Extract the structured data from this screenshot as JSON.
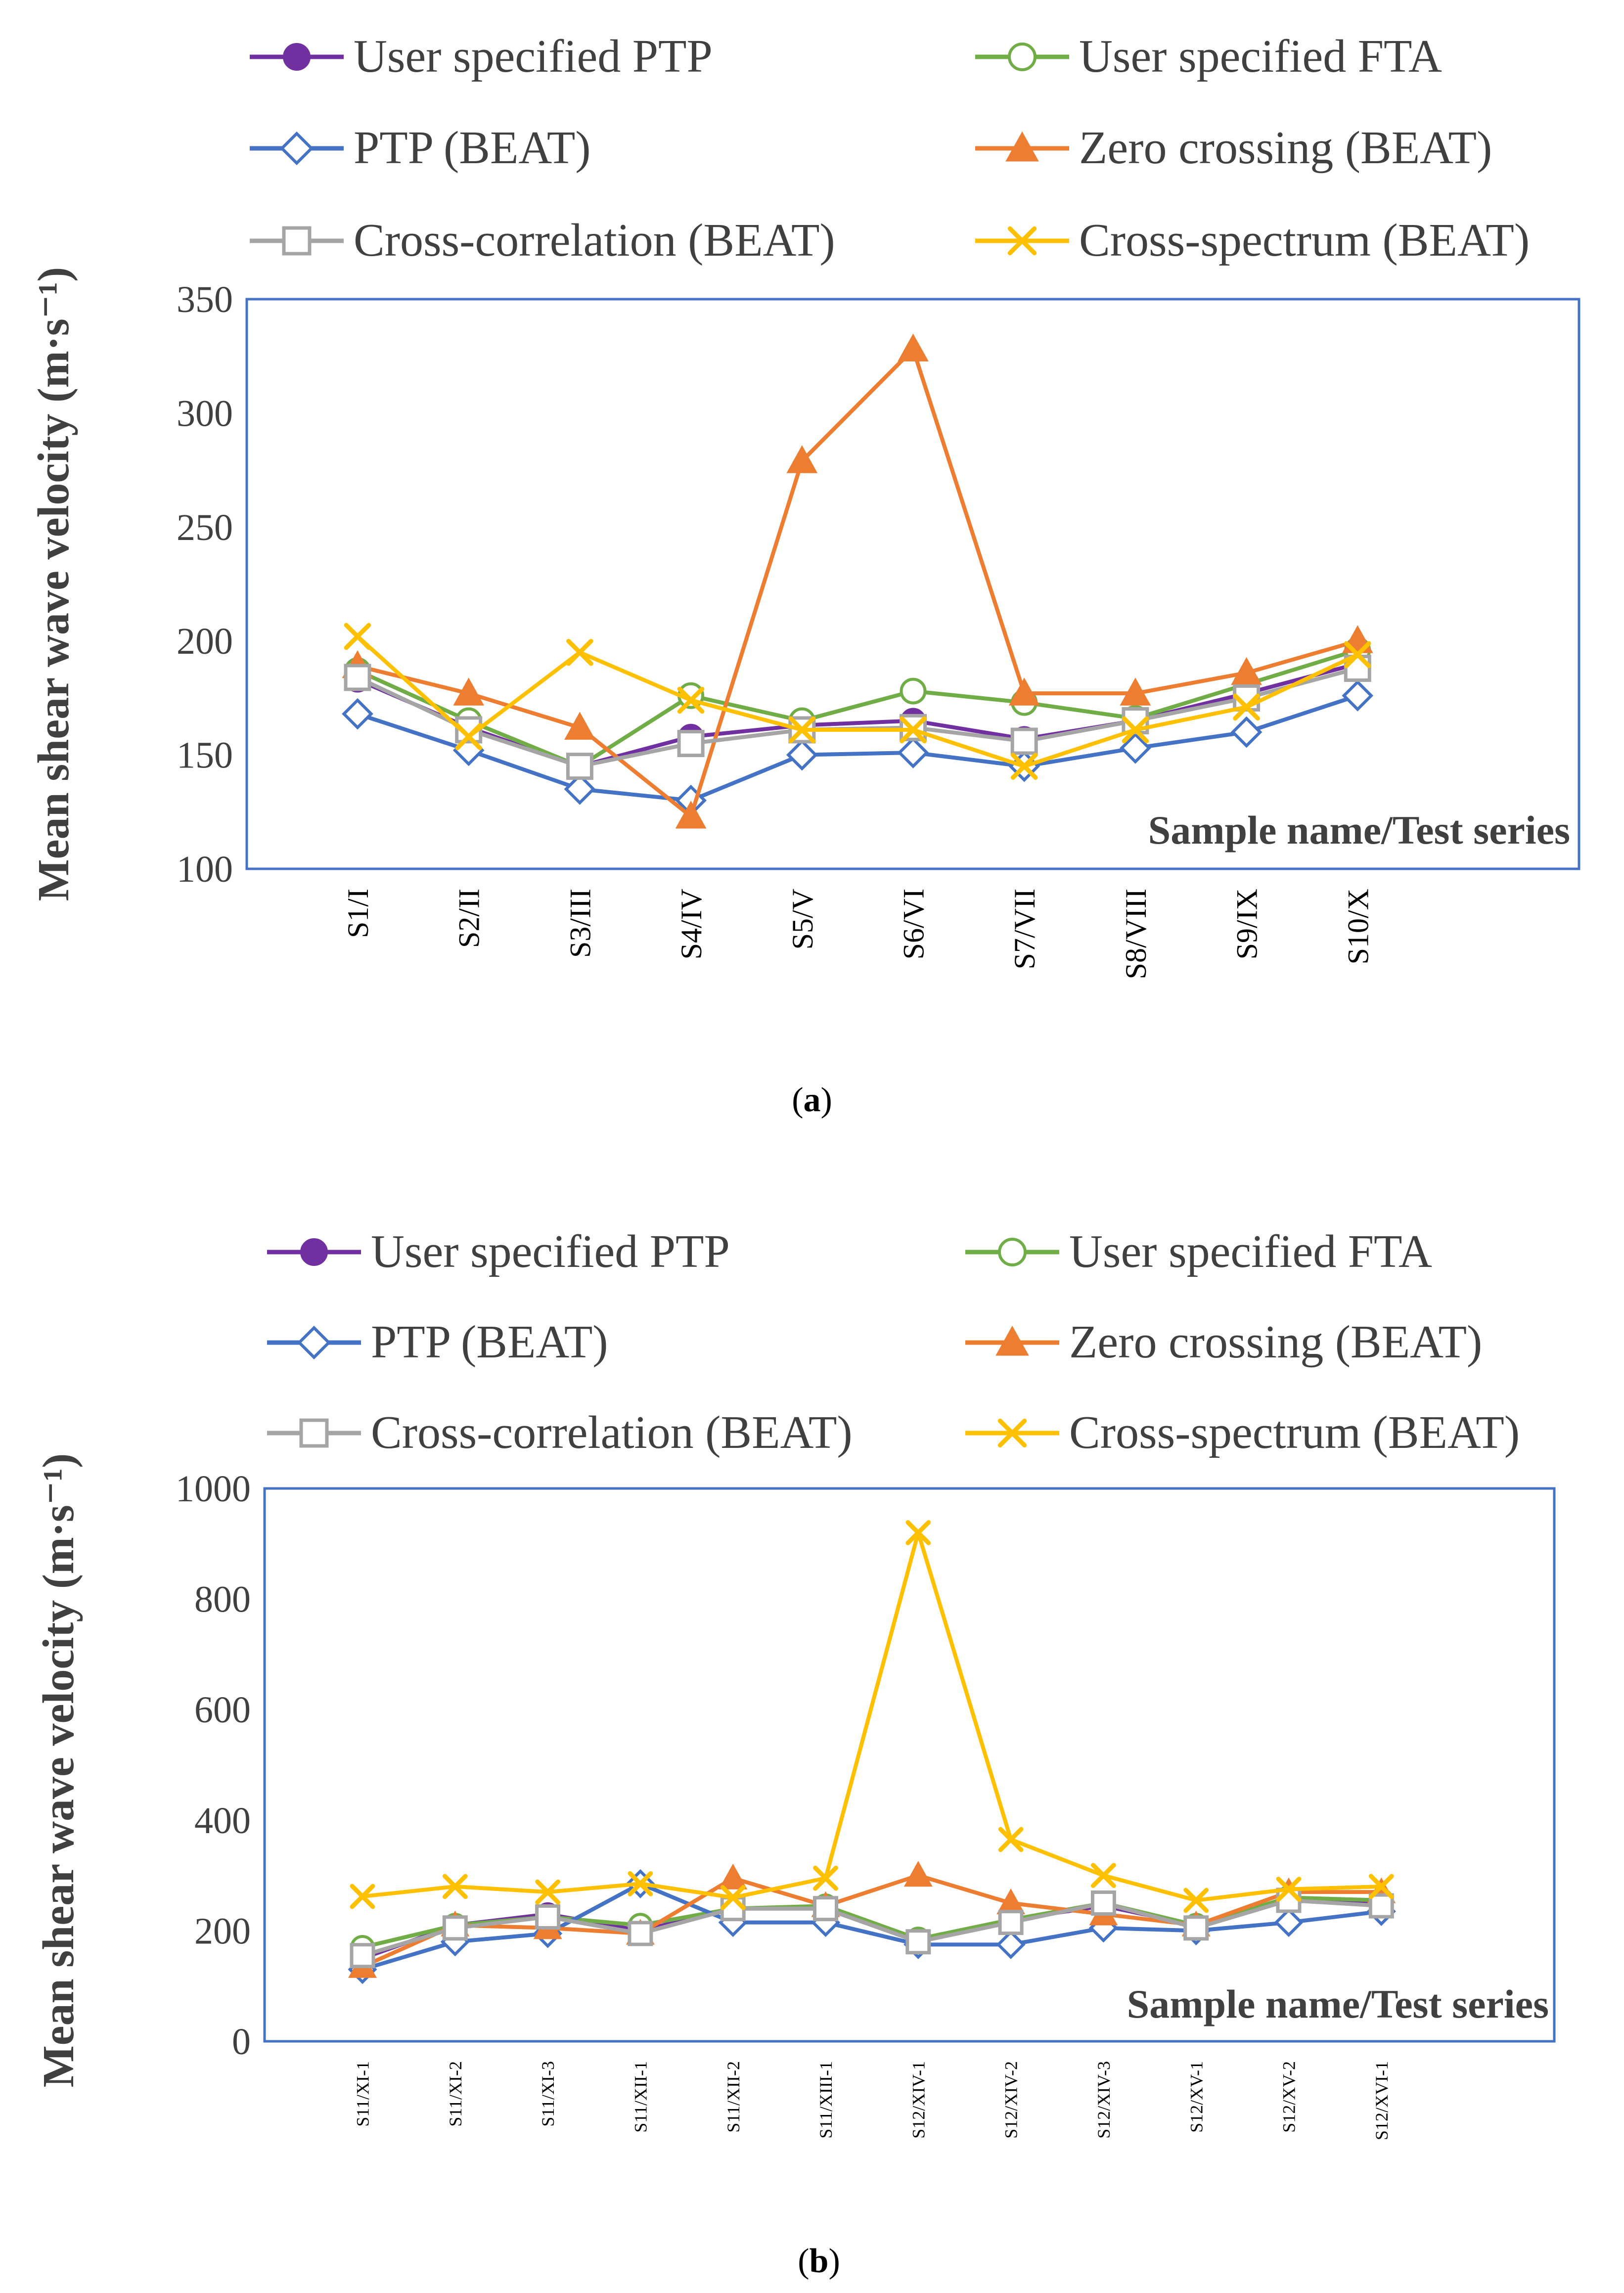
{
  "colors": {
    "user_ptp": "#7030A0",
    "user_fta": "#70AD47",
    "ptp_beat": "#4472C4",
    "zero_crossing": "#ED7D31",
    "cross_correlation": "#A5A5A5",
    "cross_spectrum": "#FFC000",
    "frame": "#4472C4"
  },
  "legend": [
    {
      "key": "user_ptp",
      "label": "User specified PTP",
      "marker": "filled-circle"
    },
    {
      "key": "user_fta",
      "label": "User specified FTA",
      "marker": "hollow-circle"
    },
    {
      "key": "ptp_beat",
      "label": "PTP (BEAT)",
      "marker": "hollow-diamond"
    },
    {
      "key": "zero_crossing",
      "label": "Zero crossing (BEAT)",
      "marker": "triangle"
    },
    {
      "key": "cross_correlation",
      "label": "Cross-correlation (BEAT)",
      "marker": "hollow-square"
    },
    {
      "key": "cross_spectrum",
      "label": "Cross-spectrum (BEAT)",
      "marker": "x"
    }
  ],
  "chart_data": [
    {
      "type": "line",
      "panel_label": "a",
      "ylabel": "Mean shear wave velocity (m·s⁻¹)",
      "xlabel": "Sample name/Test series",
      "ylim": [
        100,
        350
      ],
      "yticks": [
        100,
        150,
        200,
        250,
        300,
        350
      ],
      "categories": [
        "S1/I",
        "S2/II",
        "S3/III",
        "S4/IV",
        "S5/V",
        "S6/VI",
        "S7/VII",
        "S8/VIII",
        "S9/IX",
        "S10/X"
      ],
      "series": [
        {
          "key": "user_ptp",
          "name": "User specified PTP",
          "values": [
            183,
            162,
            145,
            158,
            163,
            165,
            157,
            165,
            177,
            190
          ]
        },
        {
          "key": "user_fta",
          "name": "User specified FTA",
          "values": [
            187,
            165,
            145,
            176,
            165,
            178,
            173,
            166,
            181,
            196
          ]
        },
        {
          "key": "ptp_beat",
          "name": "PTP (BEAT)",
          "values": [
            168,
            152,
            135,
            130,
            150,
            151,
            145,
            153,
            160,
            176
          ]
        },
        {
          "key": "zero_crossing",
          "name": "Zero crossing (BEAT)",
          "values": [
            189,
            177,
            162,
            123,
            279,
            328,
            177,
            177,
            186,
            200
          ]
        },
        {
          "key": "cross_correlation",
          "name": "Cross-correlation (BEAT)",
          "values": [
            184,
            161,
            145,
            155,
            161,
            162,
            156,
            165,
            175,
            188
          ]
        },
        {
          "key": "cross_spectrum",
          "name": "Cross-spectrum (BEAT)",
          "values": [
            202,
            158,
            195,
            174,
            161,
            161,
            145,
            161,
            171,
            194
          ]
        }
      ]
    },
    {
      "type": "line",
      "panel_label": "b",
      "ylabel": "Mean shear wave velocity (m·s⁻¹)",
      "xlabel": "Sample name/Test series",
      "ylim": [
        0,
        1000
      ],
      "yticks": [
        0,
        200,
        400,
        600,
        800,
        1000
      ],
      "categories": [
        "S11/XI-1",
        "S11/XI-2",
        "S11/XI-3",
        "S11/XII-1",
        "S11/XII-2",
        "S11/XIII-1",
        "S12/XIV-1",
        "S12/XIV-2",
        "S12/XIV-3",
        "S12/XV-1",
        "S12/XV-2",
        "S12/XVI-1"
      ],
      "series": [
        {
          "key": "user_ptp",
          "name": "User specified PTP",
          "values": [
            150,
            210,
            230,
            200,
            240,
            240,
            180,
            220,
            245,
            210,
            255,
            250
          ]
        },
        {
          "key": "user_fta",
          "name": "User specified FTA",
          "values": [
            170,
            210,
            225,
            210,
            240,
            245,
            185,
            220,
            250,
            210,
            260,
            255
          ]
        },
        {
          "key": "ptp_beat",
          "name": "PTP (BEAT)",
          "values": [
            130,
            180,
            195,
            285,
            215,
            215,
            175,
            175,
            205,
            200,
            215,
            235
          ]
        },
        {
          "key": "zero_crossing",
          "name": "Zero crossing (BEAT)",
          "values": [
            135,
            210,
            205,
            195,
            295,
            245,
            300,
            250,
            230,
            210,
            270,
            270
          ]
        },
        {
          "key": "cross_correlation",
          "name": "Cross-correlation (BEAT)",
          "values": [
            155,
            205,
            225,
            195,
            240,
            240,
            180,
            215,
            250,
            205,
            255,
            245
          ]
        },
        {
          "key": "cross_spectrum",
          "name": "Cross-spectrum (BEAT)",
          "values": [
            262,
            280,
            270,
            285,
            260,
            295,
            920,
            365,
            300,
            255,
            275,
            280
          ]
        }
      ]
    }
  ]
}
